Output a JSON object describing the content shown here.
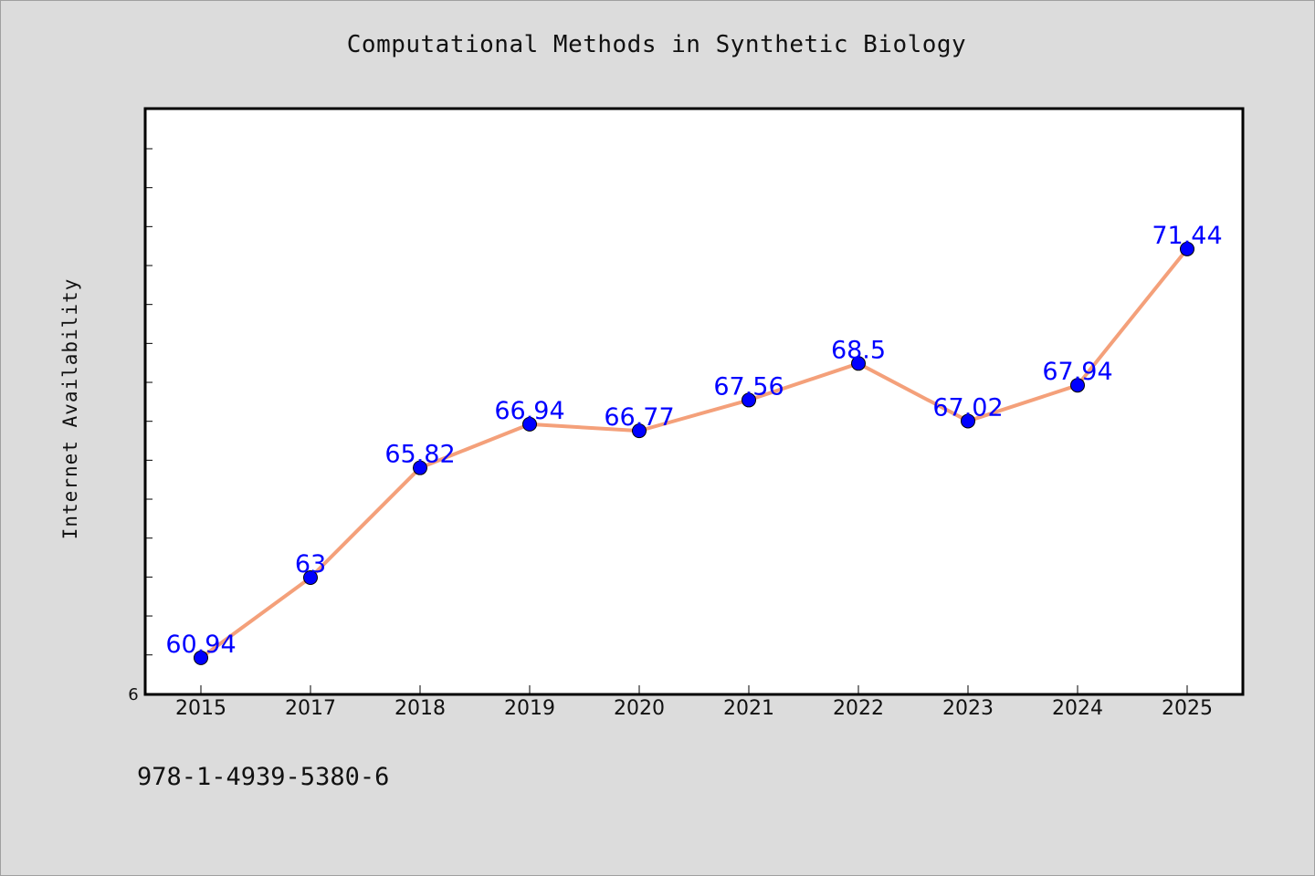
{
  "chart_data": {
    "type": "line",
    "title": "Computational Methods in Synthetic Biology",
    "xlabel": "",
    "ylabel": "Internet Availability",
    "categories": [
      "2015",
      "2017",
      "2018",
      "2019",
      "2020",
      "2021",
      "2022",
      "2023",
      "2024",
      "2025"
    ],
    "series": [
      {
        "values": [
          60.94,
          63,
          65.82,
          66.94,
          66.77,
          67.56,
          68.5,
          67.02,
          67.94,
          71.44
        ],
        "data_labels": [
          "60.94",
          "63",
          "65.82",
          "66.94",
          "66.77",
          "67.56",
          "68.5",
          "67.02",
          "67.94",
          "71.44"
        ],
        "line_color": "#f4a07a",
        "marker_color": "#0000ff"
      }
    ],
    "y_tick_labels": [
      "6"
    ],
    "ylim": [
      60,
      75
    ],
    "grid": false,
    "legend": "none"
  },
  "footer": {
    "code": "978-1-4939-5380-6"
  },
  "colors": {
    "background": "#dcdcdc",
    "plot_background": "#ffffff",
    "line": "#f4a07a",
    "marker": "#0000ff",
    "data_label": "#0000ff"
  }
}
